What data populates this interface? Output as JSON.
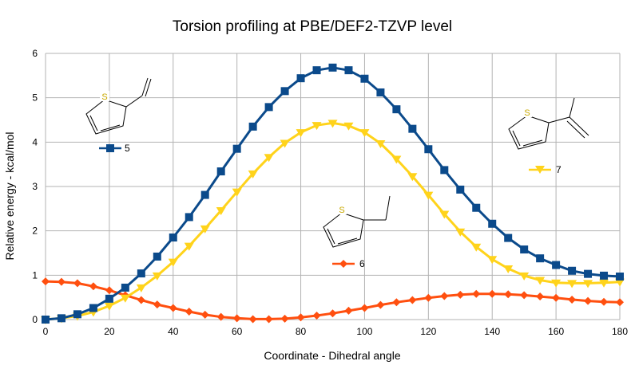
{
  "chart_data": {
    "type": "line",
    "title": "Torsion profiling at PBE/DEF2-TZVP level",
    "xlabel": "Coordinate - Dihedral angle",
    "ylabel": "Relative energy - kcal/mol",
    "xlim": [
      0,
      180
    ],
    "ylim": [
      0,
      6
    ],
    "x_ticks": [
      "0",
      "20",
      "40",
      "60",
      "80",
      "100",
      "120",
      "140",
      "160",
      "180"
    ],
    "y_ticks": [
      "0",
      "1",
      "2",
      "3",
      "4",
      "5",
      "6"
    ],
    "grid": "horizontal and vertical major gridlines",
    "x": [
      0,
      5,
      10,
      15,
      20,
      25,
      30,
      35,
      40,
      45,
      50,
      55,
      60,
      65,
      70,
      75,
      80,
      85,
      90,
      95,
      100,
      105,
      110,
      115,
      120,
      125,
      130,
      135,
      140,
      145,
      150,
      155,
      160,
      165,
      170,
      175,
      180
    ],
    "series": [
      {
        "name": "5",
        "color": "#0b4a8b",
        "marker": "square",
        "values": [
          0.0,
          0.03,
          0.12,
          0.26,
          0.47,
          0.72,
          1.04,
          1.42,
          1.85,
          2.31,
          2.81,
          3.34,
          3.85,
          4.35,
          4.79,
          5.15,
          5.44,
          5.62,
          5.68,
          5.62,
          5.43,
          5.12,
          4.74,
          4.3,
          3.84,
          3.37,
          2.93,
          2.52,
          2.16,
          1.84,
          1.58,
          1.38,
          1.23,
          1.1,
          1.03,
          0.99,
          0.97
        ]
      },
      {
        "name": "7",
        "color": "#ffd31b",
        "marker": "triangle-down",
        "values": [
          0.0,
          0.03,
          0.08,
          0.17,
          0.31,
          0.49,
          0.72,
          0.99,
          1.3,
          1.66,
          2.05,
          2.46,
          2.88,
          3.29,
          3.66,
          3.98,
          4.22,
          4.38,
          4.43,
          4.37,
          4.22,
          3.97,
          3.62,
          3.23,
          2.81,
          2.38,
          1.98,
          1.64,
          1.36,
          1.15,
          0.99,
          0.89,
          0.83,
          0.82,
          0.82,
          0.83,
          0.85
        ]
      },
      {
        "name": "6",
        "color": "#ff4f0f",
        "marker": "diamond",
        "values": [
          0.86,
          0.85,
          0.82,
          0.75,
          0.66,
          0.55,
          0.44,
          0.34,
          0.26,
          0.18,
          0.11,
          0.06,
          0.03,
          0.01,
          0.01,
          0.02,
          0.05,
          0.09,
          0.14,
          0.2,
          0.26,
          0.33,
          0.39,
          0.44,
          0.49,
          0.53,
          0.56,
          0.58,
          0.58,
          0.57,
          0.55,
          0.52,
          0.49,
          0.45,
          0.42,
          0.4,
          0.39
        ]
      }
    ],
    "legend_placement": "inline labels near each curve",
    "legend": [
      {
        "series": "5",
        "label": "5",
        "position": "upper-left"
      },
      {
        "series": "7",
        "label": "7",
        "position": "upper-right"
      },
      {
        "series": "6",
        "label": "6",
        "position": "center"
      }
    ],
    "molecule_icons": [
      {
        "name": "2-vinylthiophene-structure",
        "series": "5",
        "atom_label": "S"
      },
      {
        "name": "2-isopropenylthiophene-structure",
        "series": "7",
        "atom_label": "S"
      },
      {
        "name": "2-ethylthiophene-structure",
        "series": "6",
        "atom_label": "S"
      }
    ]
  }
}
